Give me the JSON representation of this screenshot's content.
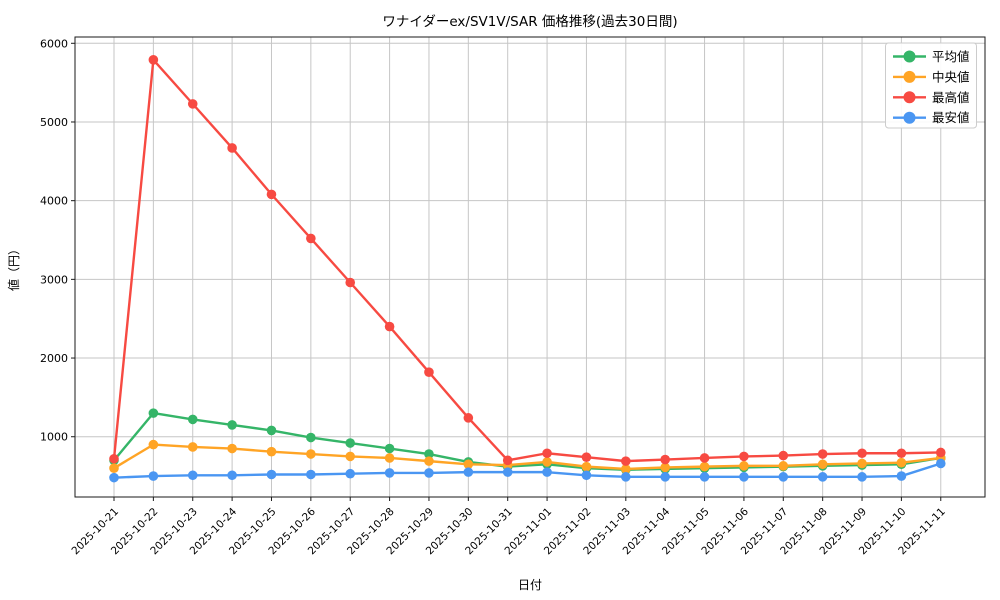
{
  "chart_data": {
    "type": "line",
    "title": "ワナイダーex/SV1V/SAR 価格推移(過去30日間)",
    "xlabel": "日付",
    "ylabel": "値（円）",
    "categories": [
      "2025-10-21",
      "2025-10-22",
      "2025-10-23",
      "2025-10-24",
      "2025-10-25",
      "2025-10-26",
      "2025-10-27",
      "2025-10-28",
      "2025-10-29",
      "2025-10-30",
      "2025-10-31",
      "2025-11-01",
      "2025-11-02",
      "2025-11-03",
      "2025-11-04",
      "2025-11-05",
      "2025-11-06",
      "2025-11-07",
      "2025-11-08",
      "2025-11-09",
      "2025-11-10",
      "2025-11-11"
    ],
    "series": [
      {
        "id": "average",
        "name": "平均値",
        "color": "#35b568",
        "values": [
          700,
          1300,
          1220,
          1150,
          1080,
          990,
          920,
          850,
          780,
          680,
          620,
          650,
          600,
          580,
          590,
          600,
          610,
          620,
          630,
          640,
          650,
          730
        ]
      },
      {
        "id": "median",
        "name": "中央値",
        "color": "#ffa425",
        "values": [
          600,
          900,
          870,
          850,
          810,
          780,
          750,
          730,
          690,
          650,
          640,
          680,
          620,
          590,
          610,
          620,
          630,
          630,
          650,
          660,
          670,
          730
        ]
      },
      {
        "id": "highest",
        "name": "最高値",
        "color": "#f74a42",
        "values": [
          720,
          5790,
          5230,
          4670,
          4080,
          3520,
          2960,
          2400,
          1820,
          1240,
          700,
          790,
          740,
          690,
          710,
          730,
          750,
          760,
          780,
          790,
          790,
          800
        ]
      },
      {
        "id": "lowest",
        "name": "最安値",
        "color": "#4a96f2",
        "values": [
          480,
          500,
          510,
          510,
          520,
          520,
          530,
          540,
          540,
          550,
          550,
          550,
          510,
          490,
          490,
          490,
          490,
          490,
          490,
          490,
          500,
          660
        ]
      }
    ],
    "yticks": [
      1000,
      2000,
      3000,
      4000,
      5000,
      6000
    ],
    "ylim": [
      234,
      6080
    ],
    "grid": true,
    "grid_color": "#c6c6c6",
    "spine_color": "#1a1a1a",
    "legend_position": "upper right",
    "background": "#ffffff"
  }
}
